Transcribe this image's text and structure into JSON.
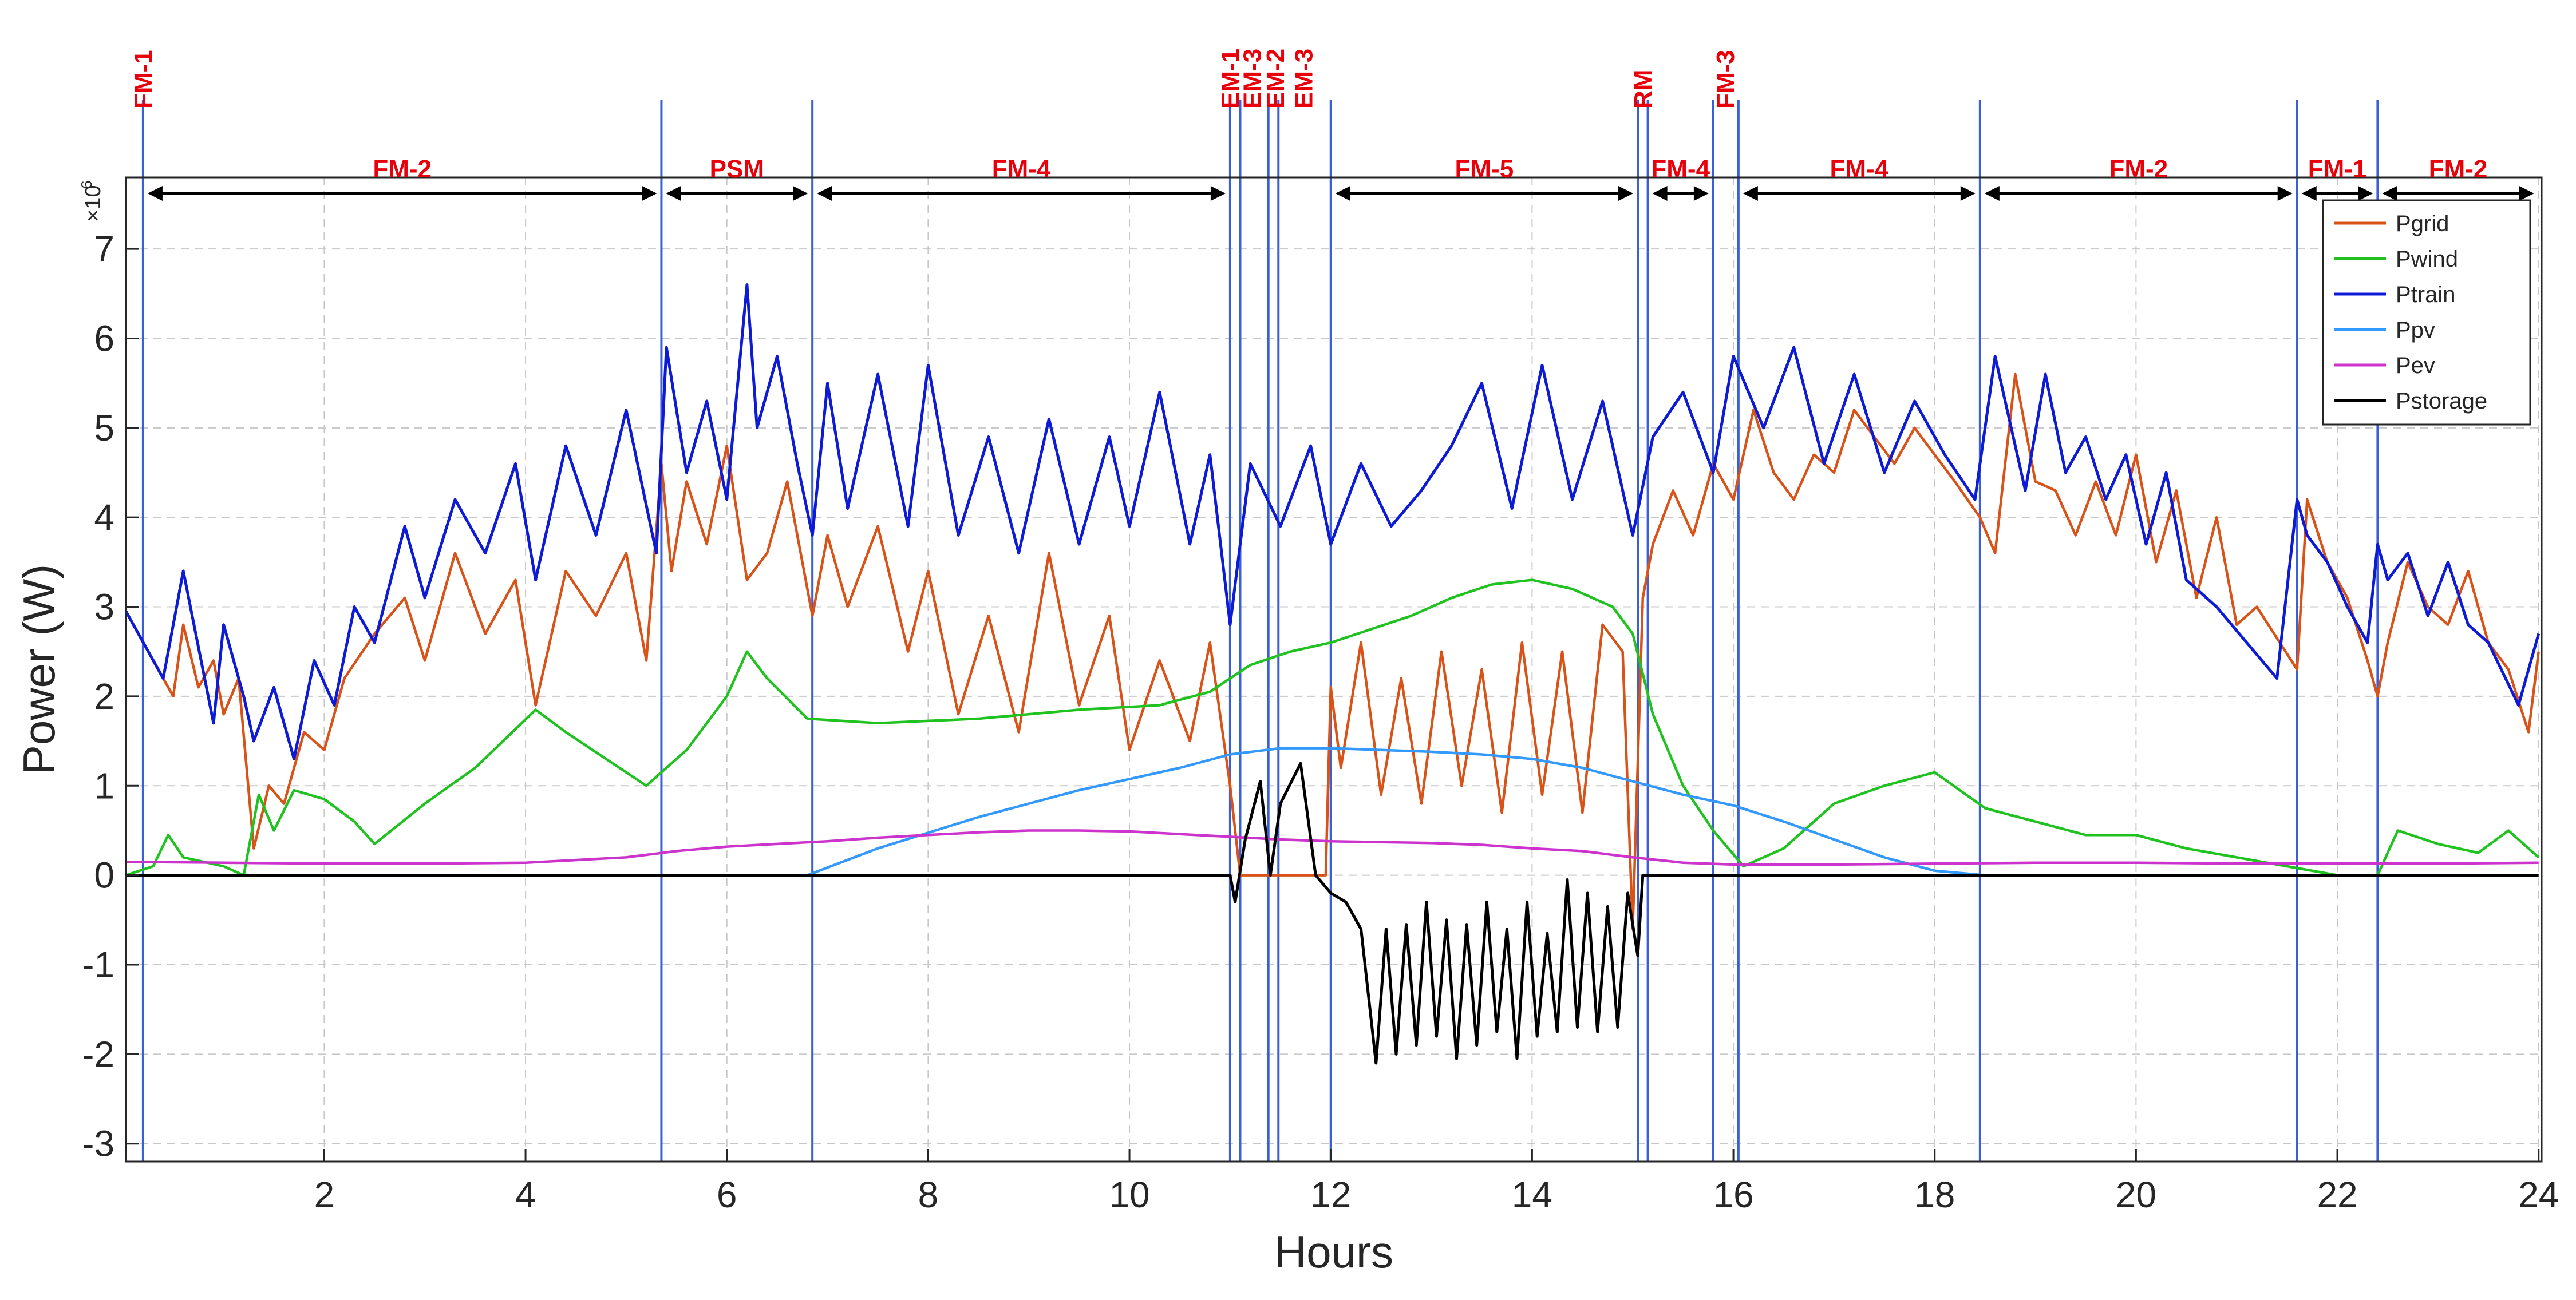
{
  "chart_data": {
    "type": "line",
    "xlabel": "Hours",
    "ylabel": "Power (W)",
    "y_multiplier": "×10",
    "y_exponent": "6",
    "xlim": [
      0.03,
      24.03
    ],
    "ylim": [
      -3.2,
      7.8
    ],
    "xticks": [
      2,
      4,
      6,
      8,
      10,
      12,
      14,
      16,
      18,
      20,
      22,
      24
    ],
    "yticks": [
      -3,
      -2,
      -1,
      0,
      1,
      2,
      3,
      4,
      5,
      6,
      7
    ],
    "xtick_labels": [
      "2",
      "4",
      "6",
      "8",
      "10",
      "12",
      "14",
      "16",
      "18",
      "20",
      "22",
      "24"
    ],
    "ytick_labels": [
      "-3",
      "-2",
      "-1",
      "0",
      "1",
      "2",
      "3",
      "4",
      "5",
      "6",
      "7"
    ],
    "grid": true,
    "legend_position": "top-right",
    "boundaries": [
      0.2,
      5.35,
      6.85,
      11.0,
      11.1,
      11.38,
      11.48,
      12.0,
      15.05,
      15.15,
      15.8,
      16.05,
      18.45,
      21.6,
      22.4
    ],
    "modes": [
      {
        "label": "FM-1",
        "at": 0.2,
        "style": "vertical"
      },
      {
        "label": "FM-2",
        "start": 0.2,
        "end": 5.35,
        "style": "span"
      },
      {
        "label": "PSM",
        "start": 5.35,
        "end": 6.85,
        "style": "span"
      },
      {
        "label": "FM-4",
        "start": 6.85,
        "end": 11.0,
        "style": "span"
      },
      {
        "label": "EM-1",
        "at": 11.0,
        "style": "vertical"
      },
      {
        "label": "EM-3",
        "at": 11.22,
        "style": "vertical"
      },
      {
        "label": "EM-2",
        "at": 11.45,
        "style": "vertical"
      },
      {
        "label": "EM-3",
        "at": 11.73,
        "style": "vertical"
      },
      {
        "label": "FM-5",
        "start": 12.0,
        "end": 15.05,
        "style": "span"
      },
      {
        "label": "RM",
        "at": 15.1,
        "style": "vertical"
      },
      {
        "label": "FM-4",
        "start": 15.15,
        "end": 15.8,
        "style": "span"
      },
      {
        "label": "FM-3",
        "at": 15.92,
        "style": "vertical"
      },
      {
        "label": "FM-4",
        "start": 16.05,
        "end": 18.45,
        "style": "span"
      },
      {
        "label": "FM-2",
        "start": 18.45,
        "end": 21.6,
        "style": "span"
      },
      {
        "label": "FM-1",
        "start": 21.6,
        "end": 22.4,
        "style": "span"
      },
      {
        "label": "FM-2",
        "start": 22.4,
        "end": 24.0,
        "style": "span"
      }
    ],
    "series": [
      {
        "name": "Pgrid",
        "color": "#d95319",
        "x": [
          0.03,
          0.3,
          0.5,
          0.6,
          0.75,
          0.9,
          1.0,
          1.15,
          1.3,
          1.45,
          1.6,
          1.8,
          2.0,
          2.2,
          2.5,
          2.8,
          3.0,
          3.3,
          3.6,
          3.9,
          4.1,
          4.4,
          4.7,
          5.0,
          5.2,
          5.35,
          5.45,
          5.6,
          5.8,
          6.0,
          6.2,
          6.4,
          6.6,
          6.85,
          7.0,
          7.2,
          7.5,
          7.8,
          8.0,
          8.3,
          8.6,
          8.9,
          9.2,
          9.5,
          9.8,
          10.0,
          10.3,
          10.6,
          10.8,
          11.0,
          11.1,
          11.5,
          11.8,
          11.95,
          12.0,
          12.1,
          12.3,
          12.5,
          12.7,
          12.9,
          13.1,
          13.3,
          13.5,
          13.7,
          13.9,
          14.1,
          14.3,
          14.5,
          14.7,
          14.9,
          15.0,
          15.1,
          15.2,
          15.4,
          15.6,
          15.8,
          16.0,
          16.2,
          16.4,
          16.6,
          16.8,
          17.0,
          17.2,
          17.4,
          17.6,
          17.8,
          18.0,
          18.2,
          18.45,
          18.6,
          18.8,
          19.0,
          19.2,
          19.4,
          19.6,
          19.8,
          20.0,
          20.2,
          20.4,
          20.6,
          20.8,
          21.0,
          21.2,
          21.6,
          21.7,
          21.9,
          22.1,
          22.3,
          22.4,
          22.5,
          22.7,
          22.9,
          23.1,
          23.3,
          23.5,
          23.7,
          23.9,
          24.0
        ],
        "y": [
          2.95,
          2.4,
          2.0,
          2.8,
          2.1,
          2.4,
          1.8,
          2.2,
          0.3,
          1.0,
          0.8,
          1.6,
          1.4,
          2.2,
          2.7,
          3.1,
          2.4,
          3.6,
          2.7,
          3.3,
          1.9,
          3.4,
          2.9,
          3.6,
          2.4,
          4.6,
          3.4,
          4.4,
          3.7,
          4.8,
          3.3,
          3.6,
          4.4,
          2.9,
          3.8,
          3.0,
          3.9,
          2.5,
          3.4,
          1.8,
          2.9,
          1.6,
          3.6,
          1.9,
          2.9,
          1.4,
          2.4,
          1.5,
          2.6,
          1.0,
          0.0,
          0.0,
          0.0,
          0.0,
          2.1,
          1.2,
          2.6,
          0.9,
          2.2,
          0.8,
          2.5,
          1.0,
          2.3,
          0.7,
          2.6,
          0.9,
          2.5,
          0.7,
          2.8,
          2.5,
          -0.6,
          3.1,
          3.7,
          4.3,
          3.8,
          4.6,
          4.2,
          5.2,
          4.5,
          4.2,
          4.7,
          4.5,
          5.2,
          4.9,
          4.6,
          5.0,
          4.7,
          4.4,
          4.0,
          3.6,
          5.6,
          4.4,
          4.3,
          3.8,
          4.4,
          3.8,
          4.7,
          3.5,
          4.3,
          3.1,
          4.0,
          2.8,
          3.0,
          2.3,
          4.2,
          3.5,
          3.1,
          2.4,
          2.0,
          2.6,
          3.5,
          3.0,
          2.8,
          3.4,
          2.6,
          2.3,
          1.6,
          2.5
        ]
      },
      {
        "name": "Pwind",
        "color": "#1fc21f",
        "x": [
          0.03,
          0.3,
          0.45,
          0.6,
          1.0,
          1.2,
          1.35,
          1.5,
          1.7,
          2.0,
          2.3,
          2.5,
          3.0,
          3.5,
          4.1,
          4.4,
          4.8,
          5.2,
          5.6,
          6.0,
          6.2,
          6.4,
          6.8,
          7.5,
          8.5,
          9.5,
          10.3,
          10.8,
          11.2,
          11.6,
          12.0,
          12.4,
          12.8,
          13.2,
          13.6,
          14.0,
          14.4,
          14.8,
          15.0,
          15.2,
          15.5,
          15.8,
          16.1,
          16.5,
          17.0,
          17.5,
          18.0,
          18.5,
          19.0,
          19.5,
          20.0,
          20.5,
          21.0,
          21.5,
          22.0,
          22.4,
          22.6,
          23.0,
          23.4,
          23.7,
          24.0
        ],
        "y": [
          0.0,
          0.1,
          0.45,
          0.2,
          0.1,
          0.0,
          0.9,
          0.5,
          0.95,
          0.85,
          0.6,
          0.35,
          0.8,
          1.2,
          1.85,
          1.6,
          1.3,
          1.0,
          1.4,
          2.0,
          2.5,
          2.2,
          1.75,
          1.7,
          1.75,
          1.85,
          1.9,
          2.05,
          2.35,
          2.5,
          2.6,
          2.75,
          2.9,
          3.1,
          3.25,
          3.3,
          3.2,
          3.0,
          2.7,
          1.8,
          1.0,
          0.5,
          0.1,
          0.3,
          0.8,
          1.0,
          1.15,
          0.75,
          0.6,
          0.45,
          0.45,
          0.3,
          0.2,
          0.1,
          0.0,
          0.0,
          0.5,
          0.35,
          0.25,
          0.5,
          0.2
        ]
      },
      {
        "name": "Ptrain",
        "color": "#0d1bd6",
        "x": [
          0.03,
          0.4,
          0.6,
          0.9,
          1.0,
          1.2,
          1.3,
          1.5,
          1.7,
          1.9,
          2.1,
          2.3,
          2.5,
          2.8,
          3.0,
          3.3,
          3.6,
          3.9,
          4.1,
          4.4,
          4.7,
          5.0,
          5.3,
          5.4,
          5.6,
          5.8,
          6.0,
          6.2,
          6.3,
          6.5,
          6.7,
          6.85,
          7.0,
          7.2,
          7.5,
          7.8,
          8.0,
          8.3,
          8.6,
          8.9,
          9.2,
          9.5,
          9.8,
          10.0,
          10.3,
          10.6,
          10.8,
          11.0,
          11.2,
          11.5,
          11.8,
          12.0,
          12.3,
          12.6,
          12.9,
          13.2,
          13.5,
          13.8,
          14.1,
          14.4,
          14.7,
          15.0,
          15.2,
          15.5,
          15.8,
          16.0,
          16.3,
          16.6,
          16.9,
          17.2,
          17.5,
          17.8,
          18.1,
          18.4,
          18.6,
          18.9,
          19.1,
          19.3,
          19.5,
          19.7,
          19.9,
          20.1,
          20.3,
          20.5,
          20.8,
          21.1,
          21.4,
          21.6,
          21.7,
          21.9,
          22.1,
          22.3,
          22.4,
          22.5,
          22.7,
          22.9,
          23.1,
          23.3,
          23.5,
          23.8,
          24.0
        ],
        "y": [
          2.95,
          2.2,
          3.4,
          1.7,
          2.8,
          2.0,
          1.5,
          2.1,
          1.3,
          2.4,
          1.9,
          3.0,
          2.6,
          3.9,
          3.1,
          4.2,
          3.6,
          4.6,
          3.3,
          4.8,
          3.8,
          5.2,
          3.6,
          5.9,
          4.5,
          5.3,
          4.2,
          6.6,
          5.0,
          5.8,
          4.6,
          3.8,
          5.5,
          4.1,
          5.6,
          3.9,
          5.7,
          3.8,
          4.9,
          3.6,
          5.1,
          3.7,
          4.9,
          3.9,
          5.4,
          3.7,
          4.7,
          2.8,
          4.6,
          3.9,
          4.8,
          3.7,
          4.6,
          3.9,
          4.3,
          4.8,
          5.5,
          4.1,
          5.7,
          4.2,
          5.3,
          3.8,
          4.9,
          5.4,
          4.5,
          5.8,
          5.0,
          5.9,
          4.6,
          5.6,
          4.5,
          5.3,
          4.7,
          4.2,
          5.8,
          4.3,
          5.6,
          4.5,
          4.9,
          4.2,
          4.7,
          3.7,
          4.5,
          3.3,
          3.0,
          2.6,
          2.2,
          4.2,
          3.8,
          3.5,
          3.0,
          2.6,
          3.7,
          3.3,
          3.6,
          2.9,
          3.5,
          2.8,
          2.6,
          1.9,
          2.7
        ]
      },
      {
        "name": "Ppv",
        "color": "#3399ff",
        "x": [
          0.03,
          6.8,
          7.5,
          8.5,
          9.5,
          10.5,
          11.0,
          11.5,
          12.0,
          12.5,
          13.0,
          13.5,
          14.0,
          14.5,
          15.0,
          15.5,
          16.0,
          16.5,
          17.0,
          17.5,
          18.0,
          18.5,
          24.0
        ],
        "y": [
          0,
          0,
          0.3,
          0.65,
          0.95,
          1.2,
          1.35,
          1.42,
          1.42,
          1.4,
          1.38,
          1.35,
          1.3,
          1.2,
          1.05,
          0.9,
          0.78,
          0.6,
          0.4,
          0.2,
          0.05,
          0,
          0
        ]
      },
      {
        "name": "Pev",
        "color": "#cc33cc",
        "x": [
          0.03,
          1.0,
          2.0,
          3.0,
          4.0,
          5.0,
          5.5,
          6.0,
          6.5,
          7.0,
          7.5,
          8.0,
          8.5,
          9.0,
          9.5,
          10.0,
          10.5,
          11.0,
          11.5,
          12.0,
          12.5,
          13.0,
          13.5,
          14.0,
          14.5,
          15.0,
          15.5,
          16.0,
          17.0,
          18.0,
          19.0,
          20.0,
          21.0,
          22.0,
          23.0,
          24.0
        ],
        "y": [
          0.15,
          0.14,
          0.13,
          0.13,
          0.14,
          0.2,
          0.27,
          0.32,
          0.35,
          0.38,
          0.42,
          0.45,
          0.48,
          0.5,
          0.5,
          0.49,
          0.46,
          0.43,
          0.4,
          0.38,
          0.37,
          0.36,
          0.34,
          0.3,
          0.27,
          0.2,
          0.14,
          0.12,
          0.12,
          0.13,
          0.14,
          0.14,
          0.13,
          0.13,
          0.13,
          0.14
        ]
      },
      {
        "name": "Pstorage",
        "color": "#000000",
        "x": [
          0.03,
          11.0,
          11.05,
          11.15,
          11.3,
          11.4,
          11.5,
          11.7,
          11.85,
          12.0,
          12.15,
          12.3,
          12.45,
          12.55,
          12.65,
          12.75,
          12.85,
          12.95,
          13.05,
          13.15,
          13.25,
          13.35,
          13.45,
          13.55,
          13.65,
          13.75,
          13.85,
          13.95,
          14.05,
          14.15,
          14.25,
          14.35,
          14.45,
          14.55,
          14.65,
          14.75,
          14.85,
          14.95,
          15.05,
          15.1,
          24.0
        ],
        "y": [
          0,
          0,
          -0.3,
          0.4,
          1.05,
          0.0,
          0.8,
          1.25,
          0.0,
          -0.2,
          -0.3,
          -0.6,
          -2.1,
          -0.6,
          -2.0,
          -0.55,
          -1.9,
          -0.3,
          -1.8,
          -0.5,
          -2.05,
          -0.55,
          -1.9,
          -0.3,
          -1.75,
          -0.6,
          -2.05,
          -0.3,
          -1.8,
          -0.65,
          -1.75,
          -0.05,
          -1.7,
          -0.2,
          -1.75,
          -0.35,
          -1.7,
          -0.2,
          -0.9,
          0.0,
          0.0
        ]
      }
    ]
  }
}
